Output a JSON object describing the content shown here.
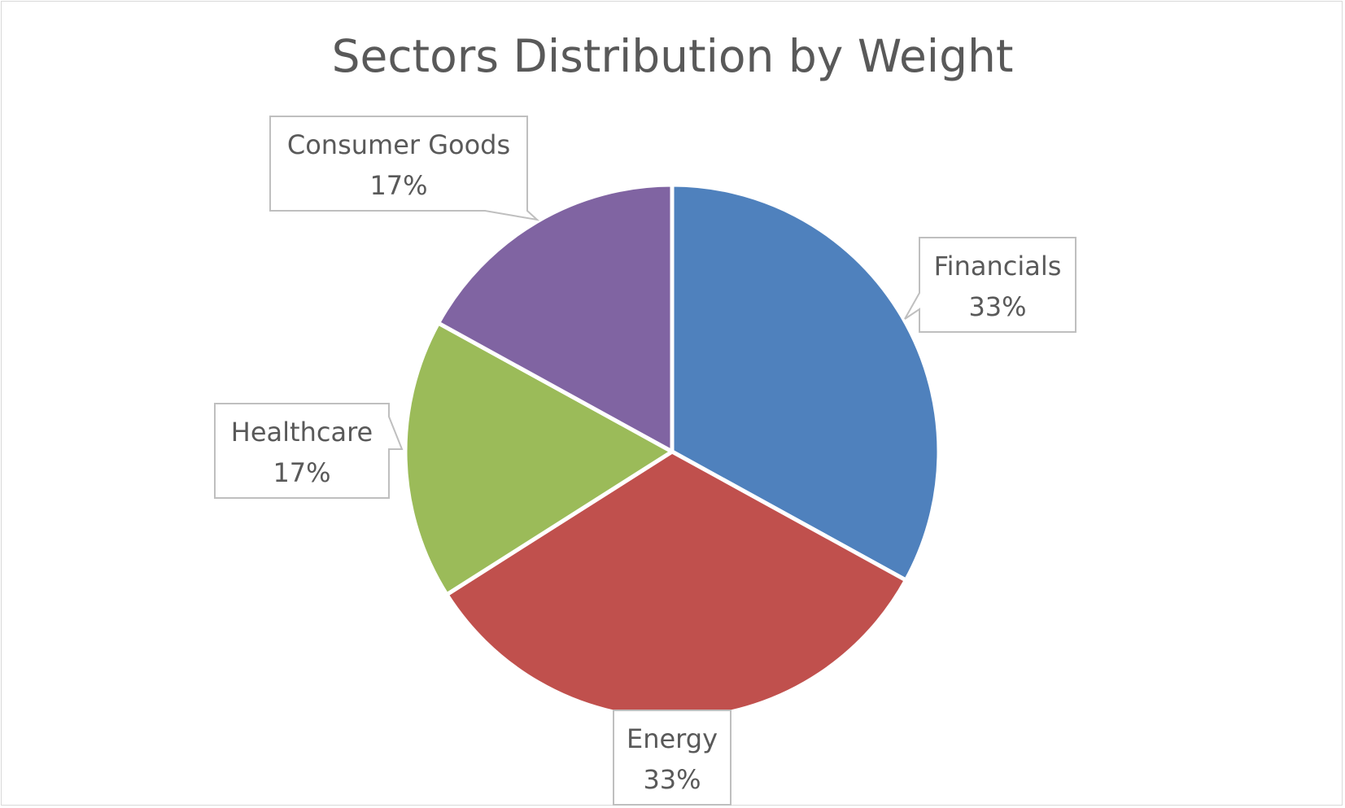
{
  "chart_data": {
    "type": "pie",
    "title": "Sectors Distribution by Weight",
    "categories": [
      "Financials",
      "Energy",
      "Healthcare",
      "Consumer Goods"
    ],
    "values": [
      33,
      33,
      17,
      17
    ],
    "value_labels": [
      "33%",
      "33%",
      "17%",
      "17%"
    ],
    "colors": [
      "#4f81bd",
      "#c0504d",
      "#9bbb59",
      "#8064a2"
    ],
    "start_angle_deg": 0,
    "direction": "clockwise",
    "legend": "none",
    "data_labels": "category and percentage, in callout boxes"
  }
}
